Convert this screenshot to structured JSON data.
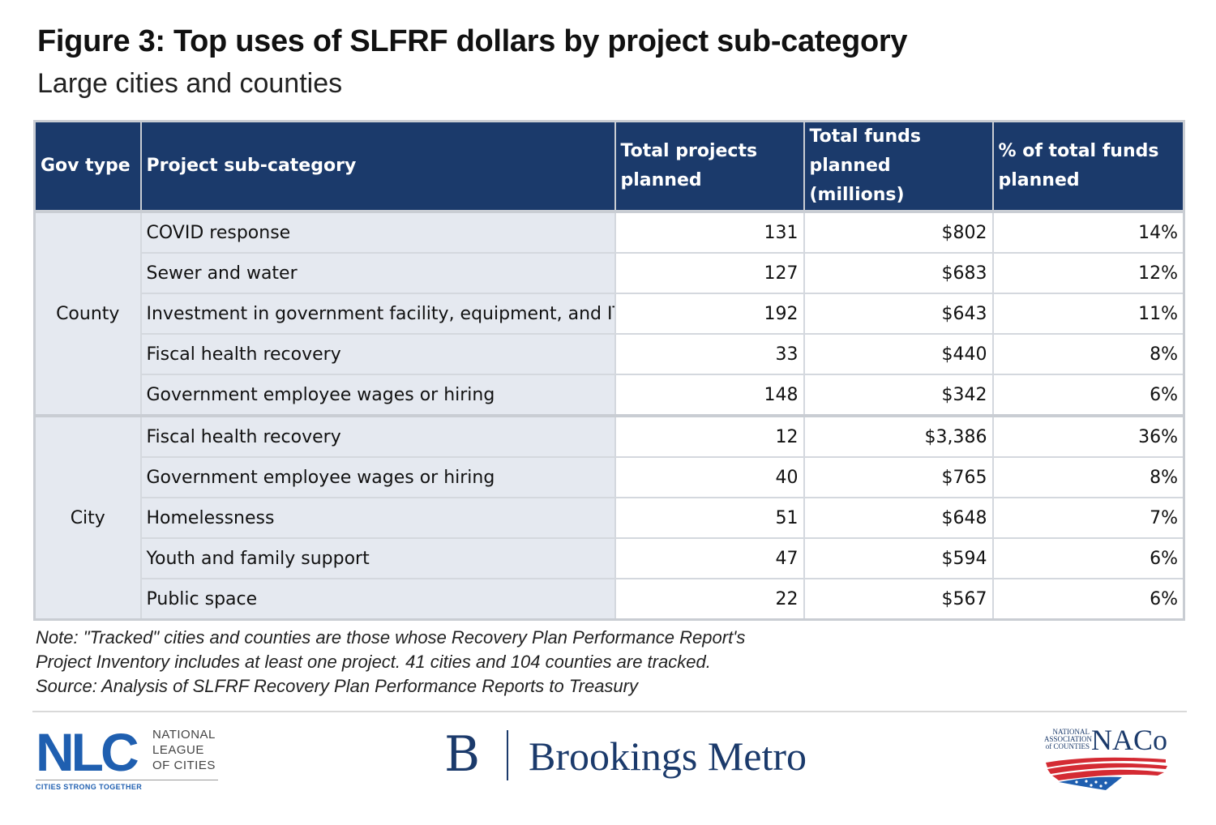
{
  "header": {
    "title": "Figure 3: Top uses of SLFRF dollars by project sub-category",
    "subtitle": "Large cities and counties"
  },
  "table": {
    "columns": [
      "Gov type",
      "Project sub-category",
      "Total projects planned",
      "Total funds planned (millions)",
      "% of total funds planned"
    ],
    "groups": [
      {
        "gov_type": "County",
        "rows": [
          {
            "category": "COVID response",
            "projects": "131",
            "funds": "$802",
            "pct": "14%"
          },
          {
            "category": "Sewer and water",
            "projects": "127",
            "funds": "$683",
            "pct": "12%"
          },
          {
            "category": "Investment in government facility, equipment, and IT",
            "projects": "192",
            "funds": "$643",
            "pct": "11%"
          },
          {
            "category": "Fiscal health recovery",
            "projects": "33",
            "funds": "$440",
            "pct": "8%"
          },
          {
            "category": "Government employee wages or hiring",
            "projects": "148",
            "funds": "$342",
            "pct": "6%"
          }
        ]
      },
      {
        "gov_type": "City",
        "rows": [
          {
            "category": "Fiscal health recovery",
            "projects": "12",
            "funds": "$3,386",
            "pct": "36%"
          },
          {
            "category": "Government employee wages or hiring",
            "projects": "40",
            "funds": "$765",
            "pct": "8%"
          },
          {
            "category": "Homelessness",
            "projects": "51",
            "funds": "$648",
            "pct": "7%"
          },
          {
            "category": "Youth and family support",
            "projects": "47",
            "funds": "$594",
            "pct": "6%"
          },
          {
            "category": "Public space",
            "projects": "22",
            "funds": "$567",
            "pct": "6%"
          }
        ]
      }
    ]
  },
  "notes": [
    "Note: \"Tracked\" cities and counties are those whose Recovery Plan Performance Report's",
    "Project Inventory includes at least one project. 41 cities and 104 counties are tracked.",
    "Source: Analysis of SLFRF Recovery Plan Performance Reports to Treasury"
  ],
  "logos": {
    "nlc": {
      "mark": "NLC",
      "name_lines": [
        "NATIONAL",
        "LEAGUE",
        "OF CITIES"
      ],
      "tagline": "CITIES STRONG TOGETHER"
    },
    "brookings": {
      "mark": "B",
      "name": "Brookings Metro"
    },
    "naco": {
      "small_lines": [
        "NATIONAL",
        "ASSOCIATION",
        "of COUNTIES"
      ],
      "mark": "NACo"
    }
  },
  "colors": {
    "header_bg": "#1b3a6b",
    "label_cell_bg": "#e5e9f0",
    "nlc_blue": "#1f5fb0",
    "naco_red": "#d42a33"
  }
}
